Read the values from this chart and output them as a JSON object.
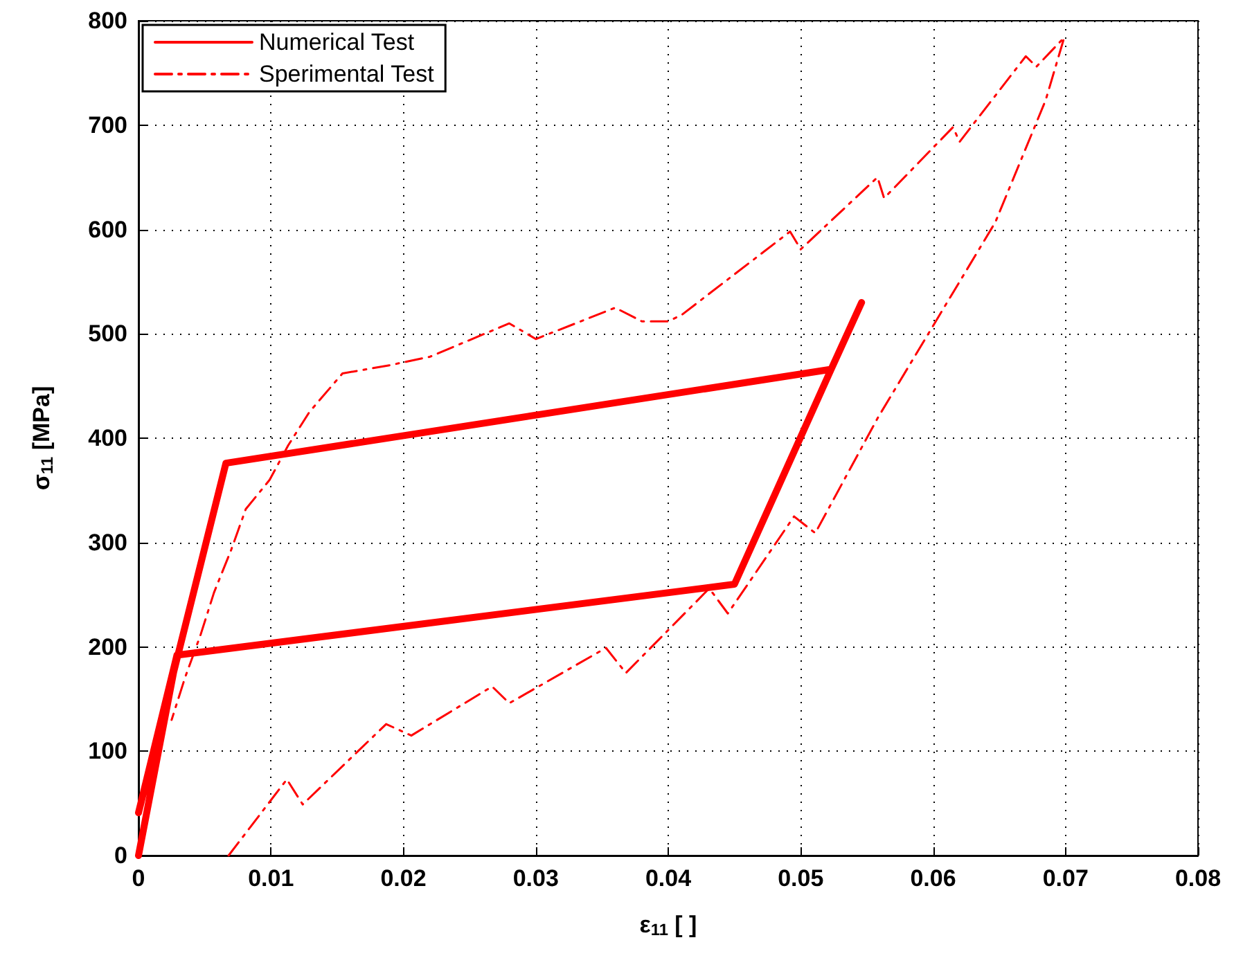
{
  "chart_data": {
    "type": "line",
    "xlabel": "ε$_{11}$ [ ]",
    "ylabel": "σ$_{11}$ [MPa]",
    "xlim": [
      0,
      0.08
    ],
    "xticks": [
      0,
      0.01,
      0.02,
      0.03,
      0.04,
      0.05,
      0.06,
      0.07,
      0.08
    ],
    "ylim": [
      0,
      800
    ],
    "yticks": [
      0,
      100,
      200,
      300,
      400,
      500,
      600,
      700,
      800
    ],
    "grid": true,
    "legend": "top left",
    "marker": "none",
    "series": [
      {
        "name": "Numerical Test",
        "color": "#ff0000",
        "line_style": "solid",
        "x": [
          0,
          0.0029,
          0.045,
          0.0523,
          0.0066,
          0,
          0.0029,
          0.045,
          0.0523,
          0.0546
        ],
        "values": [
          0,
          192,
          260,
          466,
          376,
          41,
          192,
          260,
          466,
          530
        ]
      },
      {
        "name": "Sperimental Test",
        "color": "#ff0000",
        "line_style": "dashdot",
        "x": [
          0.0068,
          0.0112,
          0.0124,
          0.0187,
          0.0206,
          0.0267,
          0.028,
          0.0353,
          0.0368,
          0.0431,
          0.0445,
          0.0495,
          0.0511,
          0.0558,
          0.0647,
          0.0685,
          0.0699,
          0.0678,
          0.067,
          0.062,
          0.0615,
          0.0563,
          0.0558,
          0.05,
          0.0492,
          0.041,
          0.04,
          0.038,
          0.036,
          0.03,
          0.028,
          0.022,
          0.019,
          0.0154,
          0.0129,
          0.0113,
          0.0099,
          0.0081,
          0.007,
          0.0057,
          0.0047,
          0.0035,
          0.0025
        ],
        "values": [
          0,
          73,
          49,
          126,
          115,
          162,
          146,
          199,
          175,
          256,
          232,
          325,
          309,
          419,
          607,
          724,
          784,
          756,
          766,
          684,
          698,
          630,
          650,
          581,
          598,
          518,
          512,
          512,
          525,
          495,
          510,
          478,
          470,
          462,
          425,
          393,
          360,
          332,
          293,
          252,
          212,
          170,
          130
        ]
      }
    ]
  }
}
